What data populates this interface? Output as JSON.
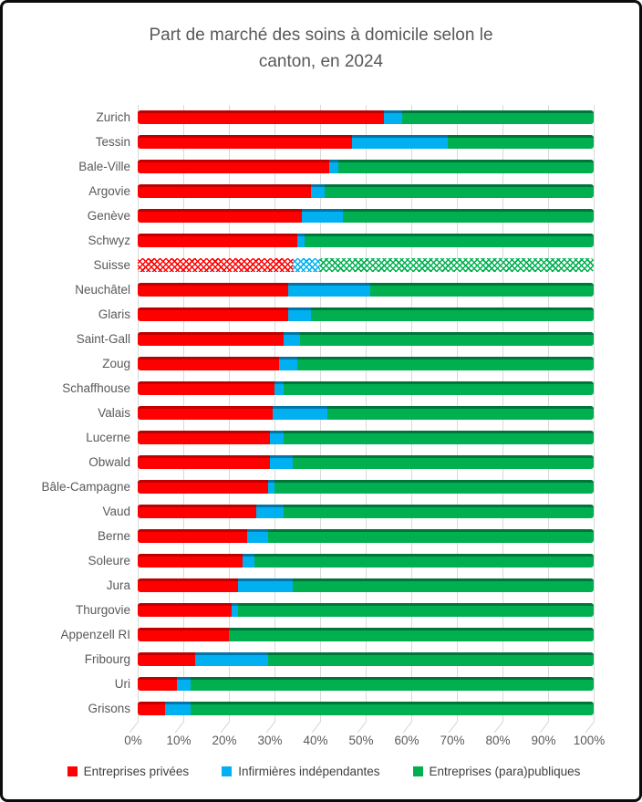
{
  "window": {
    "background": "#ffffff",
    "border_color": "#0c0c0c"
  },
  "styles": {
    "title_color": "#595959",
    "axis_text_color": "#595959",
    "legend_text_color": "#3f3f3f",
    "gridline_color": "#d9d9d9"
  },
  "chart_data": {
    "type": "bar",
    "orientation": "horizontal",
    "stacked": true,
    "grid": true,
    "legend_position": "bottom",
    "title": "Part de marché des soins à domicile selon le canton, en 2024",
    "title_lines": [
      "Part de marché des soins à domicile selon le",
      "canton, en 2024"
    ],
    "xlim": [
      0,
      100
    ],
    "x_ticks": [
      "0%",
      "10%",
      "20%",
      "30%",
      "40%",
      "50%",
      "60%",
      "70%",
      "80%",
      "90%",
      "100%"
    ],
    "pattern_category": "Suisse",
    "categories": [
      "Zurich",
      "Tessin",
      "Bale-Ville",
      "Argovie",
      "Genève",
      "Schwyz",
      "Suisse",
      "Neuchâtel",
      "Glaris",
      "Saint-Gall",
      "Zoug",
      "Schaffhouse",
      "Valais",
      "Lucerne",
      "Obwald",
      "Bâle-Campagne",
      "Vaud",
      "Berne",
      "Soleure",
      "Jura",
      "Thurgovie",
      "Appenzell RI",
      "Fribourg",
      "Uri",
      "Grisons"
    ],
    "series": [
      {
        "name": "Entreprises privées",
        "color": "#FF0000",
        "color_dark": "#C00000",
        "values": [
          54,
          47,
          42,
          38,
          36,
          35,
          34,
          33,
          33,
          32,
          31,
          30,
          29.5,
          29,
          29,
          28.5,
          26,
          24,
          23,
          22,
          20.5,
          20,
          12.5,
          8.5,
          6
        ]
      },
      {
        "name": "Infirmières indépendantes",
        "color": "#00B0F0",
        "color_dark": "#0076A8",
        "values": [
          4,
          21,
          2,
          3,
          9,
          1.5,
          6,
          18,
          5,
          3.5,
          4,
          2,
          12,
          3,
          5,
          1.5,
          6,
          4.5,
          2.5,
          12,
          1.5,
          0,
          16,
          3,
          5.5
        ]
      },
      {
        "name": "Entreprises (para)publiques",
        "color": "#00B050",
        "color_dark": "#00753A",
        "values": [
          42,
          32,
          56,
          59,
          55,
          63.5,
          60,
          49,
          62,
          64.5,
          65,
          68,
          58.5,
          68,
          66,
          70,
          68,
          71.5,
          74.5,
          66,
          78,
          80,
          71.5,
          88.5,
          88.5
        ]
      }
    ]
  }
}
